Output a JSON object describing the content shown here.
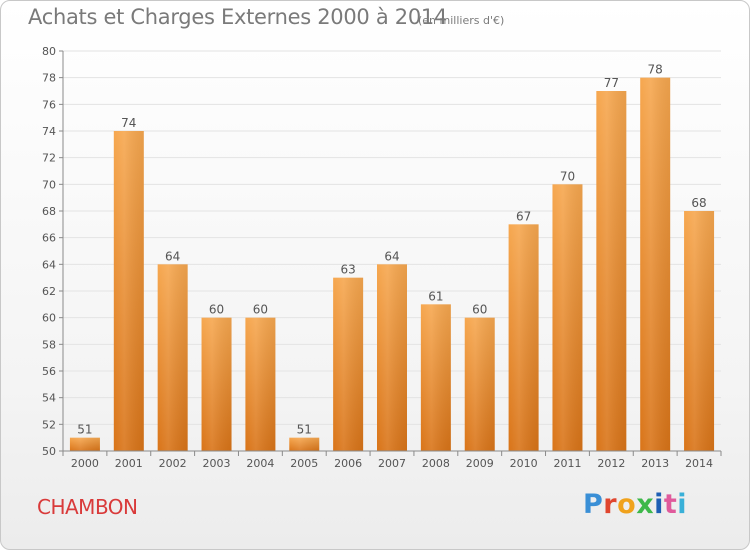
{
  "header": {
    "title": "Achats et Charges Externes 2000 à 2014",
    "subtitle": "(en milliers d'€)"
  },
  "footer": {
    "city": "CHAMBON",
    "logo_letters": [
      "P",
      "r",
      "o",
      "x",
      "i",
      "t",
      "i"
    ]
  },
  "colors": {
    "bar_light": "#f6a74f",
    "bar_dark": "#d97418",
    "city": "#d93a3a"
  },
  "chart_data": {
    "type": "bar",
    "title": "Achats et Charges Externes 2000 à 2014",
    "subtitle": "(en milliers d'€)",
    "categories": [
      "2000",
      "2001",
      "2002",
      "2003",
      "2004",
      "2005",
      "2006",
      "2007",
      "2008",
      "2009",
      "2010",
      "2011",
      "2012",
      "2013",
      "2014"
    ],
    "values": [
      51,
      74,
      64,
      60,
      60,
      51,
      63,
      64,
      61,
      60,
      67,
      70,
      77,
      78,
      68
    ],
    "ylim": [
      50,
      80
    ],
    "yticks": [
      50,
      52,
      54,
      56,
      58,
      60,
      62,
      64,
      66,
      68,
      70,
      72,
      74,
      76,
      78,
      80
    ],
    "grid": true,
    "xlabel": "",
    "ylabel": ""
  }
}
